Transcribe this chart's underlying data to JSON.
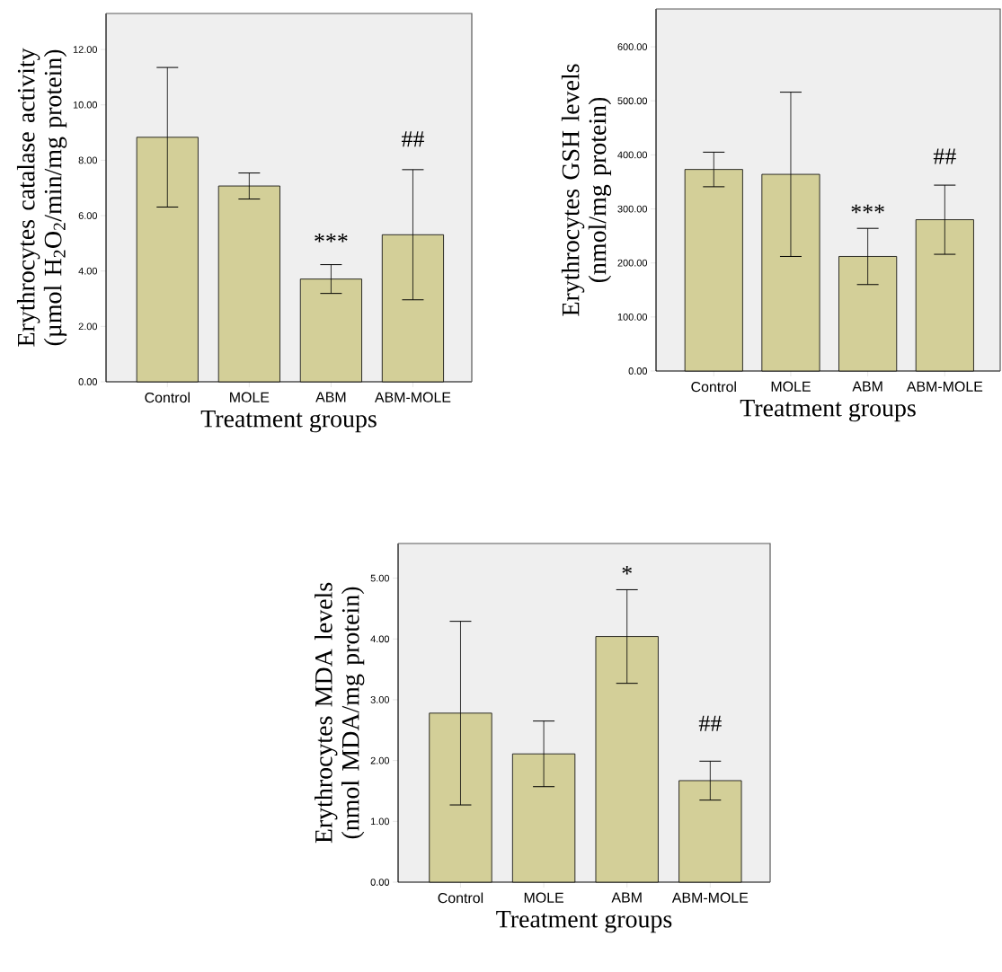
{
  "chart_data": [
    {
      "type": "bar",
      "ylabel": "Erythrocytes catalase activity (µmol H$_{2}$O$_{2}$/min/mg protein)",
      "xlabel": "Treatment groups",
      "categories": [
        "Control",
        "MOLE",
        "ABM",
        "ABM-MOLE"
      ],
      "values": [
        8.83,
        7.07,
        3.71,
        5.31
      ],
      "errors": [
        2.52,
        0.47,
        0.52,
        2.35
      ],
      "color": "#d3cf98",
      "ylim": [
        0,
        13.3
      ],
      "yticks": [
        {
          "value": 0,
          "label": "0.00"
        },
        {
          "value": 2,
          "label": "2.00"
        },
        {
          "value": 4,
          "label": "4.00"
        },
        {
          "value": 6,
          "label": "6.00"
        },
        {
          "value": 8,
          "label": "8.00"
        },
        {
          "value": 10,
          "label": "10.00"
        },
        {
          "value": 12,
          "label": "12.00"
        }
      ],
      "annotations": [
        "***",
        "##"
      ]
    },
    {
      "type": "bar",
      "ylabel": "Erythrocytes GSH levels (nmol/mg protein)",
      "xlabel": "Treatment groups",
      "categories": [
        "Control",
        "MOLE",
        "ABM",
        "ABM-MOLE"
      ],
      "values": [
        373,
        364,
        212,
        280
      ],
      "errors": [
        32,
        152,
        52,
        64
      ],
      "color": "#d3cf98",
      "ylim": [
        0,
        670
      ],
      "yticks": [
        {
          "value": 0,
          "label": "0.00"
        },
        {
          "value": 100,
          "label": "100.00"
        },
        {
          "value": 200,
          "label": "200.00"
        },
        {
          "value": 300,
          "label": "300.00"
        },
        {
          "value": 400,
          "label": "400.00"
        },
        {
          "value": 500,
          "label": "500.00"
        },
        {
          "value": 600,
          "label": "600.00"
        }
      ],
      "annotations": [
        "***",
        "##"
      ]
    },
    {
      "type": "bar",
      "ylabel": "Erythrocytes MDA levels (nmol MDA/mg protein)",
      "xlabel": "Treatment groups",
      "categories": [
        "Control",
        "MOLE",
        "ABM",
        "ABM-MOLE"
      ],
      "values": [
        2.78,
        2.11,
        4.04,
        1.67
      ],
      "errors": [
        1.51,
        0.54,
        0.77,
        0.32
      ],
      "color": "#d3cf98",
      "ylim": [
        0,
        5.57
      ],
      "yticks": [
        {
          "value": 0,
          "label": "0.00"
        },
        {
          "value": 1,
          "label": "1.00"
        },
        {
          "value": 2,
          "label": "2.00"
        },
        {
          "value": 3,
          "label": "3.00"
        },
        {
          "value": 4,
          "label": "4.00"
        },
        {
          "value": 5,
          "label": "5.00"
        }
      ],
      "annotations": [
        "*",
        "##"
      ]
    }
  ]
}
